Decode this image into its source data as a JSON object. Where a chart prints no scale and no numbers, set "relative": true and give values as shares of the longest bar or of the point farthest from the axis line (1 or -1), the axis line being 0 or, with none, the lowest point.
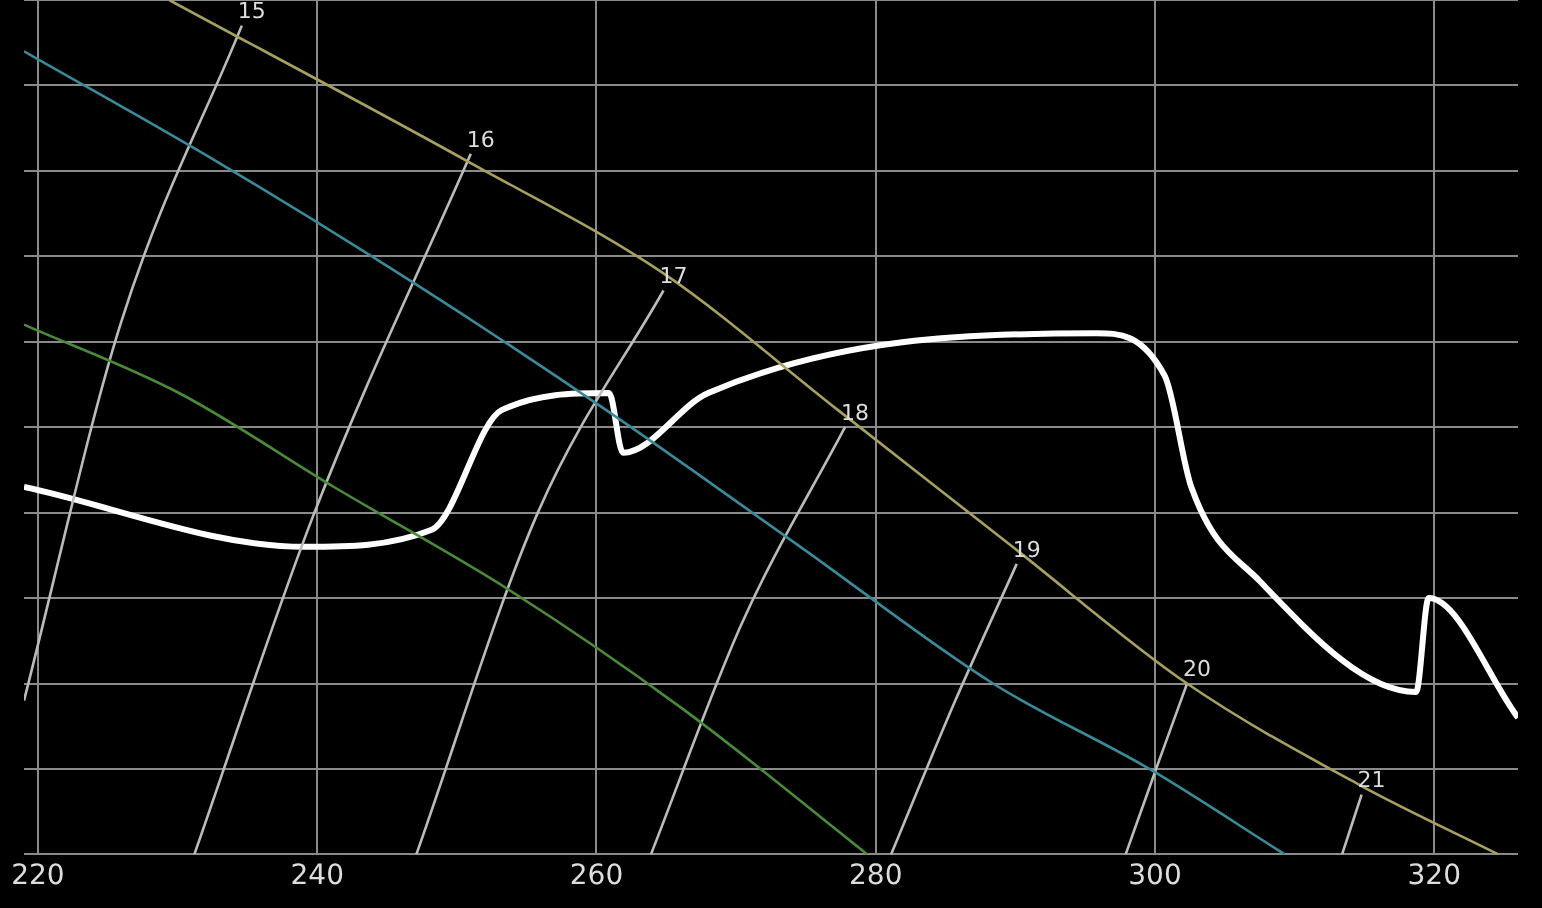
{
  "chart_data": {
    "type": "line",
    "relative": true,
    "xlim": [
      219,
      326
    ],
    "xticks": [
      220,
      240,
      260,
      280,
      300,
      320
    ],
    "tick_labels": "x",
    "grid": true,
    "legend": false,
    "marker": "none",
    "line_style": "solid",
    "series": [
      {
        "color": "#a8a060",
        "x": [
          229.4,
          250.9,
          264.8,
          277.3,
          289.8,
          302.3,
          314.8,
          324.6
        ],
        "values": [
          1.0,
          0.81,
          0.68,
          0.52,
          0.36,
          0.2,
          0.08,
          0.0
        ]
      },
      {
        "color": "#3a8a9a",
        "x": [
          219,
          232.9,
          246.8,
          260.7,
          274.6,
          288.4,
          299.6,
          309.3
        ],
        "values": [
          0.94,
          0.81,
          0.67,
          0.52,
          0.36,
          0.2,
          0.1,
          0.0
        ]
      },
      {
        "color": "#4a8a3a",
        "x": [
          219,
          230.1,
          241.2,
          253.7,
          266.2,
          279.4
        ],
        "values": [
          0.62,
          0.54,
          0.43,
          0.31,
          0.17,
          0.0
        ]
      },
      {
        "color": "#bbbbbb",
        "x": [
          219,
          225.9,
          234.6
        ],
        "values": [
          0.18,
          0.62,
          0.97
        ]
      },
      {
        "color": "#bbbbbb",
        "x": [
          231.2,
          239.8,
          251
        ],
        "values": [
          0.0,
          0.4,
          0.82
        ]
      },
      {
        "color": "#bbbbbb",
        "x": [
          247.1,
          255.8,
          264.8
        ],
        "values": [
          0.0,
          0.4,
          0.66
        ]
      },
      {
        "color": "#bbbbbb",
        "x": [
          263.9,
          270.4,
          277.8
        ],
        "values": [
          0.0,
          0.27,
          0.5
        ]
      },
      {
        "color": "#bbbbbb",
        "x": [
          281.1,
          285.7,
          290.1
        ],
        "values": [
          0.0,
          0.18,
          0.34
        ]
      },
      {
        "color": "#bbbbbb",
        "x": [
          297.9,
          300.3,
          302.3
        ],
        "values": [
          0.0,
          0.11,
          0.2
        ]
      },
      {
        "color": "#bbbbbb",
        "x": [
          313.4,
          314.8
        ],
        "values": [
          0.0,
          0.07
        ]
      },
      {
        "color": "#ffffff",
        "x": [
          219,
          239.1,
          248.2,
          253.2,
          260.9,
          261.9,
          268.0,
          295.8,
          300.7,
          302.6,
          307.5,
          318.7,
          319.6,
          326
        ],
        "values": [
          0.43,
          0.36,
          0.38,
          0.52,
          0.54,
          0.47,
          0.54,
          0.61,
          0.56,
          0.43,
          0.32,
          0.19,
          0.3,
          0.16
        ]
      }
    ],
    "annotations": [
      {
        "text": "15",
        "x": 234.6,
        "y": 0.97
      },
      {
        "text": "16",
        "x": 251,
        "y": 0.82
      },
      {
        "text": "17",
        "x": 264.8,
        "y": 0.66
      },
      {
        "text": "18",
        "x": 277.8,
        "y": 0.5
      },
      {
        "text": "19",
        "x": 290.1,
        "y": 0.34
      },
      {
        "text": "20",
        "x": 302.3,
        "y": 0.2
      },
      {
        "text": "21",
        "x": 314.8,
        "y": 0.07
      }
    ]
  }
}
